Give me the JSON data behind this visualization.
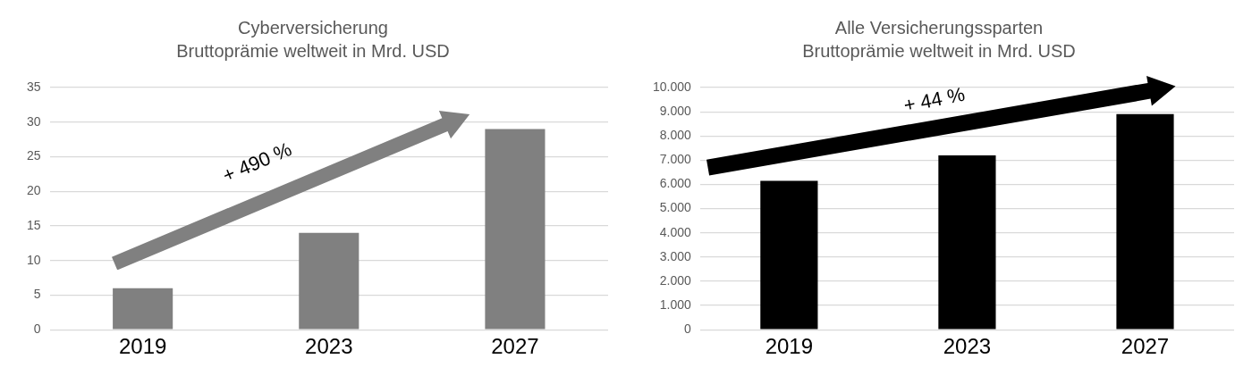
{
  "chart_data": [
    {
      "type": "bar",
      "title": "Cyberversicherung",
      "subtitle": "Bruttoprämie weltweit in Mrd. USD",
      "categories": [
        "2019",
        "2023",
        "2027"
      ],
      "values": [
        6,
        14,
        29
      ],
      "color": "#808080",
      "ylim": [
        0,
        35
      ],
      "yticks": [
        0,
        5,
        10,
        15,
        20,
        25,
        30,
        35
      ],
      "grid": "y",
      "annotations": [
        "+ 490 %"
      ]
    },
    {
      "type": "bar",
      "title": "Alle Versicherungssparten",
      "subtitle": "Bruttoprämie weltweit in Mrd. USD",
      "categories": [
        "2019",
        "2023",
        "2027"
      ],
      "values": [
        6150,
        7200,
        8900
      ],
      "color": "#000000",
      "ylim": [
        0,
        10000
      ],
      "yticks": [
        0,
        {
          "value": 1000,
          "label": "1.000"
        },
        {
          "value": 2000,
          "label": "2.000"
        },
        {
          "value": 3000,
          "label": "3.000"
        },
        {
          "value": 4000,
          "label": "4.000"
        },
        {
          "value": 5000,
          "label": "5.000"
        },
        {
          "value": 6000,
          "label": "6.000"
        },
        {
          "value": 7000,
          "label": "7.000"
        },
        {
          "value": 8000,
          "label": "8.000"
        },
        {
          "value": 9000,
          "label": "9.000"
        },
        {
          "value": 10000,
          "label": "10.000"
        }
      ],
      "grid": "y",
      "annotations": [
        "+ 44 %"
      ]
    }
  ]
}
